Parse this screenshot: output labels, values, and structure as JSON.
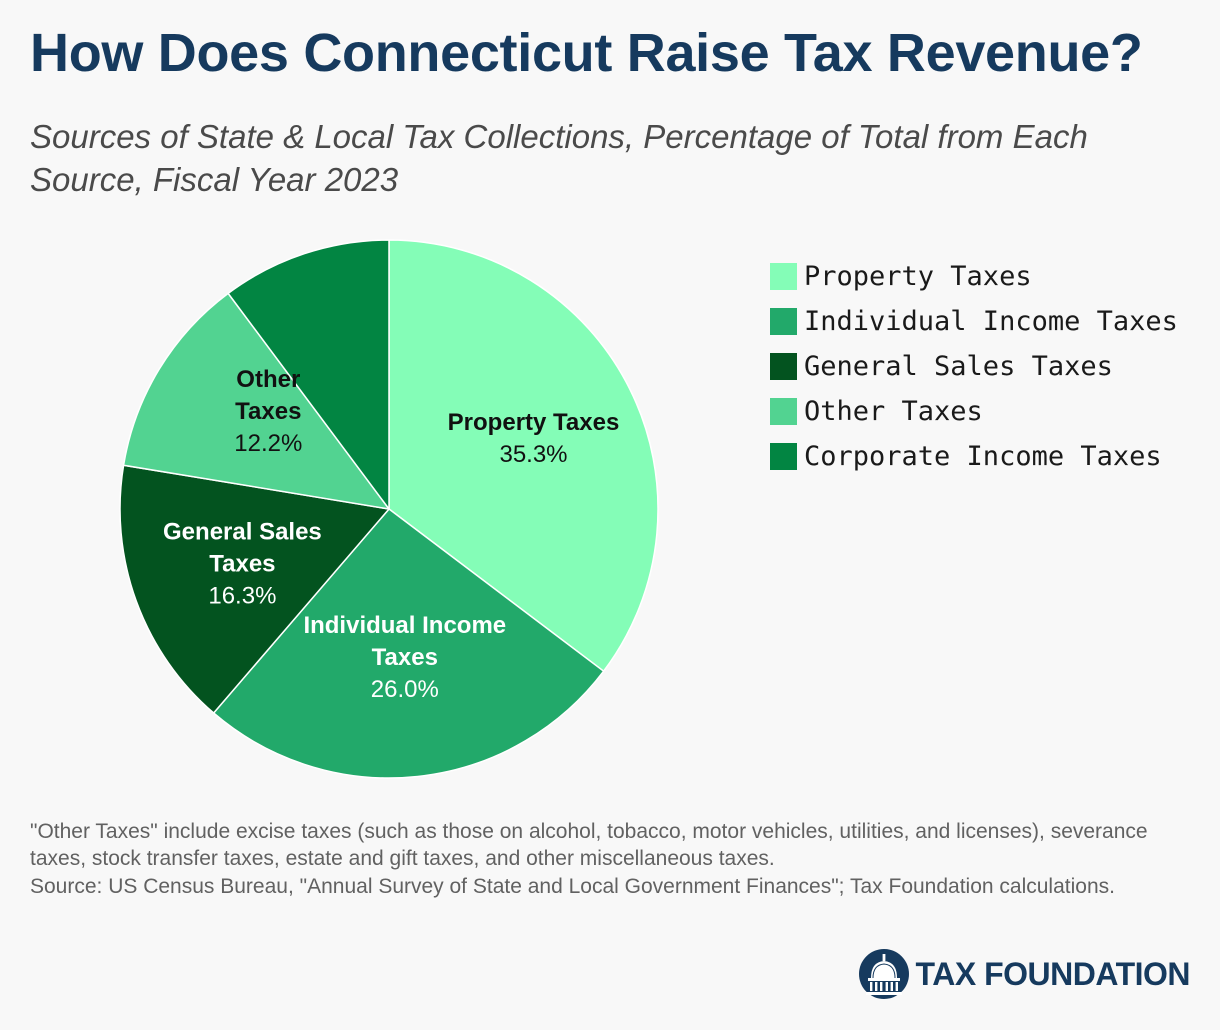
{
  "title": "How Does Connecticut Raise Tax Revenue?",
  "subtitle": "Sources of State & Local Tax Collections, Percentage of Total from Each Source, Fiscal Year 2023",
  "chart_data": {
    "type": "pie",
    "title": "How Does Connecticut Raise Tax Revenue?",
    "subtitle": "Sources of State & Local Tax Collections, Percentage of Total from Each Source, Fiscal Year 2023",
    "legend_placement": "right",
    "start": "12 o'clock, clockwise",
    "slices": [
      {
        "name": "Property Taxes",
        "value": 35.3,
        "value_label": "35.3%",
        "label_lines": [
          "Property Taxes"
        ],
        "color": "#84fdb7",
        "label_color": "#111111"
      },
      {
        "name": "Individual Income Taxes",
        "value": 26.0,
        "value_label": "26.0%",
        "label_lines": [
          "Individual Income",
          "Taxes"
        ],
        "color": "#22a96a",
        "label_color": "#ffffff"
      },
      {
        "name": "General Sales Taxes",
        "value": 16.3,
        "value_label": "16.3%",
        "label_lines": [
          "General Sales",
          "Taxes"
        ],
        "color": "#03531f",
        "label_color": "#ffffff"
      },
      {
        "name": "Other Taxes",
        "value": 12.2,
        "value_label": "12.2%",
        "label_lines": [
          "Other",
          "Taxes"
        ],
        "color": "#52d391",
        "label_color": "#111111"
      },
      {
        "name": "Corporate Income Taxes",
        "value": 10.2,
        "value_label": "",
        "label_lines": [],
        "color": "#028542",
        "label_color": "#ffffff"
      }
    ]
  },
  "legend": {
    "items": [
      {
        "label": "Property Taxes",
        "color": "#84fdb7"
      },
      {
        "label": "Individual Income Taxes",
        "color": "#22a96a"
      },
      {
        "label": "General Sales Taxes",
        "color": "#03531f"
      },
      {
        "label": "Other Taxes",
        "color": "#52d391"
      },
      {
        "label": "Corporate Income Taxes",
        "color": "#028542"
      }
    ]
  },
  "footnote": "\"Other Taxes\" include excise taxes (such as those on alcohol, tobacco, motor vehicles, utilities, and licenses), severance taxes, stock transfer taxes, estate and gift taxes, and other miscellaneous taxes.",
  "source": "Source: US Census Bureau, \"Annual Survey of State and Local Government Finances\"; Tax Foundation calculations.",
  "brand": {
    "name": "TAX FOUNDATION",
    "logo_icon": "capitol-dome-icon",
    "color": "#163a5e"
  }
}
